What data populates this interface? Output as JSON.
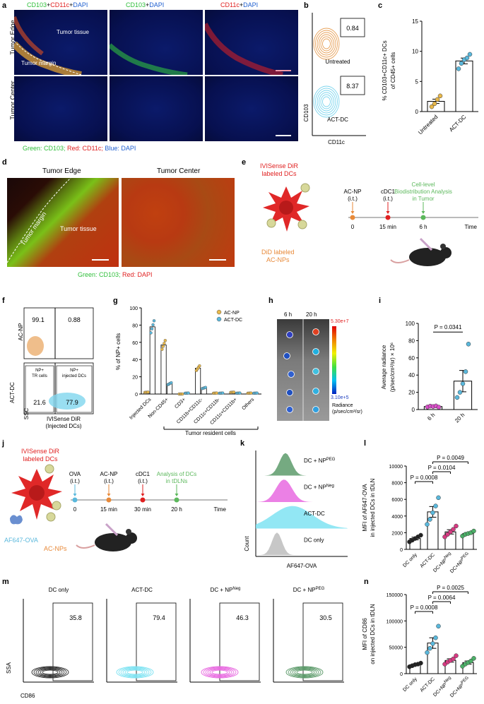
{
  "panel_a": {
    "label": "a",
    "col_titles": [
      {
        "parts": [
          {
            "text": "CD103",
            "color": "#2fbf3a"
          },
          {
            "text": "+",
            "color": "#000"
          },
          {
            "text": "CD11c",
            "color": "#e02020"
          },
          {
            "text": "+",
            "color": "#000"
          },
          {
            "text": "DAPI",
            "color": "#2060d0"
          }
        ]
      },
      {
        "parts": [
          {
            "text": "CD103",
            "color": "#2fbf3a"
          },
          {
            "text": "+",
            "color": "#000"
          },
          {
            "text": "DAPI",
            "color": "#2060d0"
          }
        ]
      },
      {
        "parts": [
          {
            "text": "CD11c",
            "color": "#e02020"
          },
          {
            "text": "+",
            "color": "#000"
          },
          {
            "text": "DAPI",
            "color": "#2060d0"
          }
        ]
      }
    ],
    "row_labels": [
      "Tumor Edge",
      "Tumor Center"
    ],
    "image_labels": {
      "tissue": "Tumor tissue",
      "margin": "Tumor margin"
    },
    "legend": [
      {
        "text": "Green: CD103;",
        "color": "#2fbf3a"
      },
      {
        "text": " Red: CD11c;",
        "color": "#e02020"
      },
      {
        "text": " Blue: DAPI",
        "color": "#2060d0"
      }
    ]
  },
  "panel_b": {
    "label": "b",
    "plots": [
      {
        "value": "0.84",
        "condition": "Untreated",
        "color": "#e8a25a"
      },
      {
        "value": "8.37",
        "condition": "ACT-DC",
        "color": "#7fd6ee"
      }
    ],
    "ylabel": "CD103",
    "xlabel": "CD11c"
  },
  "panel_c": {
    "label": "c",
    "ylabel_lines": [
      "% CD103+CD11c+ DCs",
      "of CD45+ cells"
    ],
    "chart_data": {
      "type": "bar",
      "categories": [
        "Untreated",
        "ACT-DC"
      ],
      "values": [
        1.7,
        8.4
      ],
      "ylim": [
        0,
        15
      ],
      "yticks": [
        0,
        5,
        10,
        15
      ],
      "points": [
        [
          0.8,
          1.3,
          2.0,
          2.6
        ],
        [
          7.1,
          8.0,
          8.6,
          8.9,
          9.5
        ]
      ],
      "point_colors": [
        "#e8b84a",
        "#5ab8dc"
      ]
    }
  },
  "panel_d": {
    "label": "d",
    "titles": [
      "Tumor Edge",
      "Tumor Center"
    ],
    "image_labels": {
      "margin": "Tumor margin",
      "tissue": "Tumor tissue"
    },
    "legend": [
      {
        "text": "Green: CD103;",
        "color": "#2fbf3a"
      },
      {
        "text": " Red: DAPI",
        "color": "#e02020"
      }
    ]
  },
  "panel_e": {
    "label": "e",
    "dc_label_lines": [
      "IVISense DiR",
      "labeled DCs"
    ],
    "np_label_lines": [
      "DiD labeled",
      "AC-NPs"
    ],
    "steps": [
      {
        "name_lines": [
          "AC-NP",
          "(i.t.)"
        ],
        "time": "0",
        "color": "#e88a3a"
      },
      {
        "name_lines": [
          "cDC1",
          "(i.t.)"
        ],
        "time": "15 min",
        "color": "#e02020"
      },
      {
        "name_lines": [
          "Cell-level",
          "Biodistribution Analysis",
          "in Tumor"
        ],
        "time": "6 h",
        "color": "#5cb85c"
      }
    ],
    "axis_label": "Time"
  },
  "panel_f": {
    "label": "f",
    "top": {
      "row": "AC-NP",
      "left": "99.1",
      "right": "0.88"
    },
    "bottom": {
      "row": "ACT-DC",
      "gate_left": "NP+\nTR cells",
      "gate_right": "NP+\ninjected DCs",
      "left": "21.6",
      "right": "77.9"
    },
    "ylabel": "SSC",
    "xlabel_lines": [
      "IVISense DiR",
      "(Injected DCs)"
    ]
  },
  "panel_g": {
    "label": "g",
    "ylabel": "% of NP+ cells",
    "bracket_label": "Tumor resident cells",
    "chart_data": {
      "type": "bar",
      "categories": [
        "Injected DCs",
        "Non-CD45+",
        "CD3+",
        "CD11b+CD11c-",
        "CD11c+CD11b-",
        "CD11c+CD11b+",
        "Others"
      ],
      "series": [
        {
          "name": "AC-NP",
          "values": [
            2,
            57,
            0,
            30,
            1,
            2,
            1
          ],
          "color": "#e8b84a"
        },
        {
          "name": "ACT-DC",
          "values": [
            78,
            12,
            1,
            7,
            1,
            1,
            1
          ],
          "color": "#5ab8dc"
        }
      ],
      "ylim": [
        0,
        100
      ],
      "yticks": [
        0,
        20,
        40,
        60,
        80,
        100
      ]
    }
  },
  "panel_h": {
    "label": "h",
    "col_labels": [
      "6 h",
      "20 h"
    ],
    "scale_max": "5.30e+7",
    "scale_min": "3.10e+5",
    "scale_title_lines": [
      "Radiance",
      "(p/sec/cm²/sr)"
    ]
  },
  "panel_i": {
    "label": "i",
    "ylabel_lines": [
      "Average radiance",
      "(p/sec/cm²/sr) × 10⁶"
    ],
    "pval": "P = 0.0341",
    "chart_data": {
      "type": "bar",
      "categories": [
        "6 h",
        "20 h"
      ],
      "values": [
        3.5,
        33
      ],
      "ylim": [
        0,
        100
      ],
      "yticks": [
        0,
        20,
        40,
        60,
        80,
        100
      ],
      "points": [
        [
          3,
          4,
          3.5,
          4.2,
          2.8
        ],
        [
          14,
          20,
          30,
          44,
          76
        ]
      ],
      "point_colors": [
        "#d94fc9",
        "#5ab8dc"
      ]
    }
  },
  "panel_j": {
    "label": "j",
    "dc_label_lines": [
      "IVISense DiR",
      "labeled DCs"
    ],
    "ova_label": "AF647-OVA",
    "np_label": "AC-NPs",
    "steps": [
      {
        "name_lines": [
          "OVA",
          "(i.t.)"
        ],
        "time": "0",
        "color": "#5ab8dc"
      },
      {
        "name_lines": [
          "AC-NP",
          "(i.t.)"
        ],
        "time": "15 min",
        "color": "#e88a3a"
      },
      {
        "name_lines": [
          "cDC1",
          "(i.t.)"
        ],
        "time": "30 min",
        "color": "#e02020"
      },
      {
        "name_lines": [
          "Analysis of DCs",
          "in tDLNs"
        ],
        "time": "20 h",
        "color": "#5cb85c"
      }
    ],
    "axis_label": "Time"
  },
  "panel_k": {
    "label": "k",
    "tracks": [
      {
        "name": "DC + NP",
        "sup": "PEG",
        "color": "#5d9b6b"
      },
      {
        "name": "DC + NP",
        "sup": "Neg",
        "color": "#e86ae0"
      },
      {
        "name": "ACT-DC",
        "sup": "",
        "color": "#7fe3f2"
      },
      {
        "name": "DC only",
        "sup": "",
        "color": "#bdbdbd"
      }
    ],
    "ylabel": "Count",
    "xlabel": "AF647-OVA"
  },
  "panel_l": {
    "label": "l",
    "ylabel_lines": [
      "MFI of AF647-OVA",
      "in injected DCs in tDLN"
    ],
    "pvals": [
      "P = 0.0008",
      "P = 0.0104",
      "P = 0.0049"
    ],
    "chart_data": {
      "type": "bar",
      "categories": [
        "DC only",
        "ACT-DC",
        "DC+NP^Neg",
        "DC+NP^PEG"
      ],
      "values": [
        1300,
        4500,
        2100,
        1900
      ],
      "ylim": [
        0,
        10000
      ],
      "yticks": [
        0,
        2000,
        4000,
        6000,
        8000,
        10000
      ],
      "points": [
        [
          900,
          1100,
          1300,
          1500,
          1700
        ],
        [
          3000,
          3600,
          4400,
          5200,
          6200
        ],
        [
          1500,
          1800,
          2100,
          2400,
          2800
        ],
        [
          1600,
          1800,
          1900,
          2000,
          2200
        ]
      ],
      "point_colors": [
        "#222222",
        "#5ab8dc",
        "#d63b82",
        "#4caf68"
      ]
    }
  },
  "panel_m": {
    "label": "m",
    "plots": [
      {
        "title": "DC only",
        "sup": "",
        "value": "35.8",
        "color": "#333333"
      },
      {
        "title": "ACT-DC",
        "sup": "",
        "value": "79.4",
        "color": "#7fe3f2"
      },
      {
        "title": "DC + NP",
        "sup": "Neg",
        "value": "46.3",
        "color": "#e86ae0"
      },
      {
        "title": "DC + NP",
        "sup": "PEG",
        "value": "30.5",
        "color": "#5d9b6b"
      }
    ],
    "ylabel": "SSA",
    "xlabel": "CD86"
  },
  "panel_n": {
    "label": "n",
    "ylabel_lines": [
      "MFI of CD86",
      "on injected DCs in tDLN"
    ],
    "pvals": [
      "P = 0.0008",
      "P = 0.0064",
      "P = 0.0025"
    ],
    "chart_data": {
      "type": "bar",
      "categories": [
        "DC only",
        "ACT-DC",
        "DC+NP^Neg",
        "DC+NP^PEG"
      ],
      "values": [
        17000,
        58000,
        25000,
        21000
      ],
      "ylim": [
        0,
        150000
      ],
      "yticks": [
        0,
        50000,
        100000,
        150000
      ],
      "points": [
        [
          13000,
          15000,
          17000,
          18000,
          20000
        ],
        [
          40000,
          48000,
          57000,
          68000,
          90000
        ],
        [
          18000,
          22000,
          25000,
          28000,
          34000
        ],
        [
          14000,
          18000,
          21000,
          24000,
          29000
        ]
      ],
      "point_colors": [
        "#222222",
        "#5ab8dc",
        "#d63b82",
        "#4caf68"
      ]
    }
  }
}
